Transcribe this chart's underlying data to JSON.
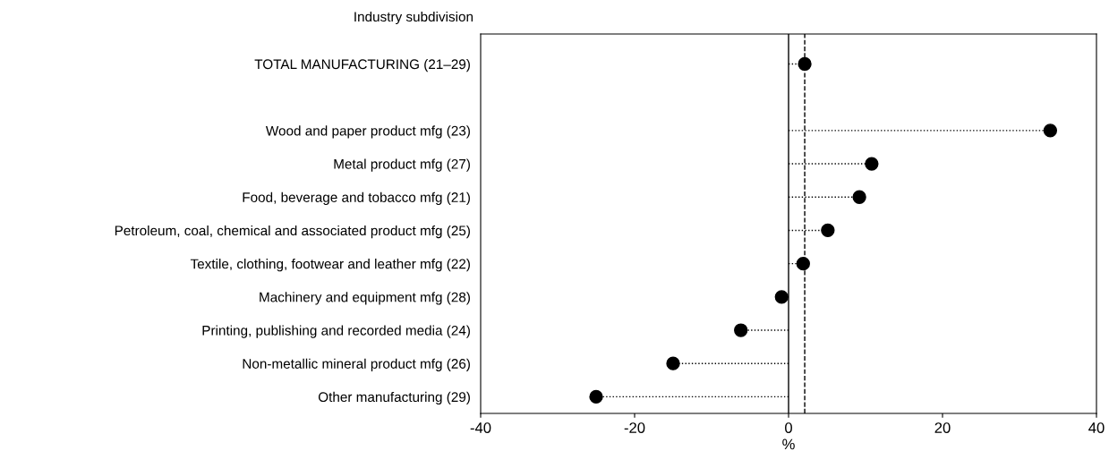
{
  "chart_data": {
    "type": "lollipop",
    "xlabel": "%",
    "annotations": [
      "Industry subdivision"
    ],
    "orientation": "horizontal",
    "categories": [
      "TOTAL MANUFACTURING (21–29)",
      null,
      "Wood and paper product mfg (23)",
      "Metal product mfg (27)",
      "Food, beverage and tobacco mfg (21)",
      "Petroleum, coal, chemical and associated product mfg (25)",
      "Textile, clothing, footwear and leather mfg (22)",
      "Machinery and equipment mfg (28)",
      "Printing, publishing and recorded media (24)",
      "Non-metallic mineral product mfg (26)",
      "Other manufacturing (29)"
    ],
    "values": [
      2.1,
      null,
      34.0,
      10.8,
      9.2,
      5.1,
      1.9,
      -0.9,
      -6.2,
      -15.0,
      -25.0
    ],
    "color": "#000000",
    "marker": "circle",
    "line_style": "dotted",
    "xlim": [
      -40,
      40
    ],
    "xticks": [
      -40,
      -20,
      0,
      20,
      40
    ],
    "ref_lines": [
      {
        "axis": "x",
        "value": 0,
        "line_style": "solid",
        "color": "#000000"
      },
      {
        "axis": "x",
        "value": 2.1,
        "line_style": "dashed",
        "color": "#000000"
      }
    ],
    "grid": false
  }
}
